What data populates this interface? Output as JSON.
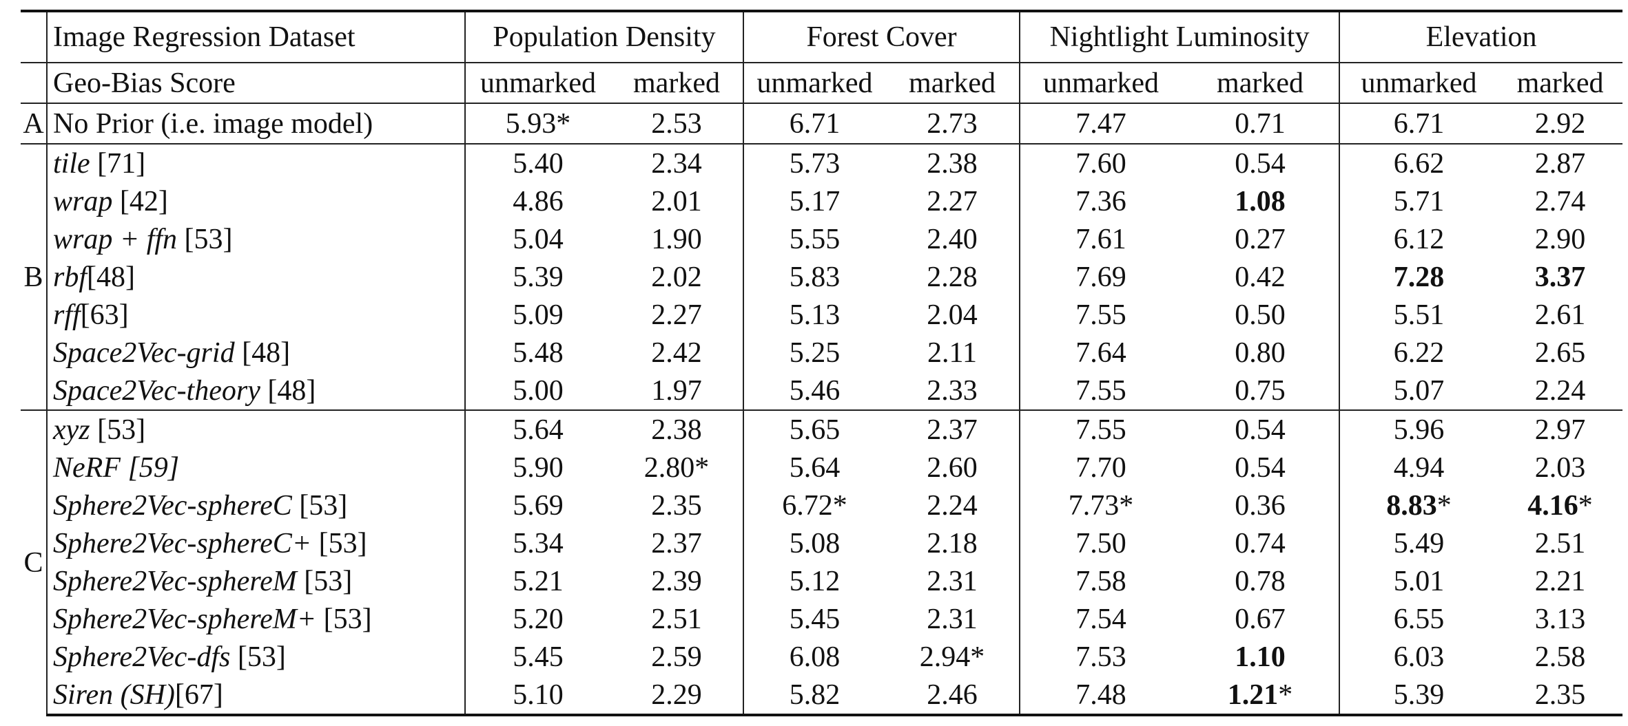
{
  "table": {
    "dataset_label": "Image Regression Dataset",
    "score_label": "Geo-Bias Score",
    "datasets": [
      "Population Density",
      "Forest Cover",
      "Nightlight Luminosity",
      "Elevation"
    ],
    "sub_labels": [
      "unmarked",
      "marked",
      "unmarked",
      "marked",
      "unmarked",
      "marked",
      "unmarked",
      "marked"
    ],
    "group_a": {
      "label": "A",
      "rows": [
        {
          "name_parts": [
            {
              "t": "No Prior (i.e. image model)",
              "s": ""
            }
          ],
          "v": [
            {
              "t": "5.93*",
              "b": false
            },
            {
              "t": "2.53",
              "b": false
            },
            {
              "t": "6.71",
              "b": false
            },
            {
              "t": "2.73",
              "b": false
            },
            {
              "t": "7.47",
              "b": false
            },
            {
              "t": "0.71",
              "b": false
            },
            {
              "t": "6.71",
              "b": false
            },
            {
              "t": "2.92",
              "b": false
            }
          ]
        }
      ]
    },
    "group_b": {
      "label": "B",
      "rows": [
        {
          "name_parts": [
            {
              "t": "tile",
              "s": "it"
            },
            {
              "t": " [71]",
              "s": ""
            }
          ],
          "v": [
            {
              "t": "5.40",
              "b": false
            },
            {
              "t": "2.34",
              "b": false
            },
            {
              "t": "5.73",
              "b": false
            },
            {
              "t": "2.38",
              "b": false
            },
            {
              "t": "7.60",
              "b": false
            },
            {
              "t": "0.54",
              "b": false
            },
            {
              "t": "6.62",
              "b": false
            },
            {
              "t": "2.87",
              "b": false
            }
          ]
        },
        {
          "name_parts": [
            {
              "t": "wrap",
              "s": "it"
            },
            {
              "t": " [42]",
              "s": ""
            }
          ],
          "v": [
            {
              "t": "4.86",
              "b": false
            },
            {
              "t": "2.01",
              "b": false
            },
            {
              "t": "5.17",
              "b": false
            },
            {
              "t": "2.27",
              "b": false
            },
            {
              "t": "7.36",
              "b": false
            },
            {
              "t": "1.08",
              "b": true
            },
            {
              "t": "5.71",
              "b": false
            },
            {
              "t": "2.74",
              "b": false
            }
          ]
        },
        {
          "name_parts": [
            {
              "t": "wrap + ffn",
              "s": "it"
            },
            {
              "t": " [53]",
              "s": ""
            }
          ],
          "v": [
            {
              "t": "5.04",
              "b": false
            },
            {
              "t": "1.90",
              "b": false
            },
            {
              "t": "5.55",
              "b": false
            },
            {
              "t": "2.40",
              "b": false
            },
            {
              "t": "7.61",
              "b": false
            },
            {
              "t": "0.27",
              "b": false
            },
            {
              "t": "6.12",
              "b": false
            },
            {
              "t": "2.90",
              "b": false
            }
          ]
        },
        {
          "name_parts": [
            {
              "t": "rbf",
              "s": "it"
            },
            {
              "t": "[48]",
              "s": ""
            }
          ],
          "v": [
            {
              "t": "5.39",
              "b": false
            },
            {
              "t": "2.02",
              "b": false
            },
            {
              "t": "5.83",
              "b": false
            },
            {
              "t": "2.28",
              "b": false
            },
            {
              "t": "7.69",
              "b": false
            },
            {
              "t": "0.42",
              "b": false
            },
            {
              "t": "7.28",
              "b": true
            },
            {
              "t": "3.37",
              "b": true
            }
          ]
        },
        {
          "name_parts": [
            {
              "t": "rff",
              "s": "it"
            },
            {
              "t": "[63]",
              "s": ""
            }
          ],
          "v": [
            {
              "t": "5.09",
              "b": false
            },
            {
              "t": "2.27",
              "b": false
            },
            {
              "t": "5.13",
              "b": false
            },
            {
              "t": "2.04",
              "b": false
            },
            {
              "t": "7.55",
              "b": false
            },
            {
              "t": "0.50",
              "b": false
            },
            {
              "t": "5.51",
              "b": false
            },
            {
              "t": "2.61",
              "b": false
            }
          ]
        },
        {
          "name_parts": [
            {
              "t": "Space2Vec-grid",
              "s": "it"
            },
            {
              "t": " [48]",
              "s": ""
            }
          ],
          "v": [
            {
              "t": "5.48",
              "b": false
            },
            {
              "t": "2.42",
              "b": false
            },
            {
              "t": "5.25",
              "b": false
            },
            {
              "t": "2.11",
              "b": false
            },
            {
              "t": "7.64",
              "b": false
            },
            {
              "t": "0.80",
              "b": false
            },
            {
              "t": "6.22",
              "b": false
            },
            {
              "t": "2.65",
              "b": false
            }
          ]
        },
        {
          "name_parts": [
            {
              "t": "Space2Vec-theory",
              "s": "it"
            },
            {
              "t": " [48]",
              "s": ""
            }
          ],
          "v": [
            {
              "t": "5.00",
              "b": false
            },
            {
              "t": "1.97",
              "b": false
            },
            {
              "t": "5.46",
              "b": false
            },
            {
              "t": "2.33",
              "b": false
            },
            {
              "t": "7.55",
              "b": false
            },
            {
              "t": "0.75",
              "b": false
            },
            {
              "t": "5.07",
              "b": false
            },
            {
              "t": "2.24",
              "b": false
            }
          ]
        }
      ]
    },
    "group_c": {
      "label": "C",
      "rows": [
        {
          "name_parts": [
            {
              "t": "xyz",
              "s": "it"
            },
            {
              "t": " [53]",
              "s": ""
            }
          ],
          "v": [
            {
              "t": "5.64",
              "b": false
            },
            {
              "t": "2.38",
              "b": false
            },
            {
              "t": "5.65",
              "b": false
            },
            {
              "t": "2.37",
              "b": false
            },
            {
              "t": "7.55",
              "b": false
            },
            {
              "t": "0.54",
              "b": false
            },
            {
              "t": "5.96",
              "b": false
            },
            {
              "t": "2.97",
              "b": false
            }
          ]
        },
        {
          "name_parts": [
            {
              "t": "NeRF [59]",
              "s": "it"
            }
          ],
          "v": [
            {
              "t": "5.90",
              "b": false
            },
            {
              "t": "2.80*",
              "b": false
            },
            {
              "t": "5.64",
              "b": false
            },
            {
              "t": "2.60",
              "b": false
            },
            {
              "t": "7.70",
              "b": false
            },
            {
              "t": "0.54",
              "b": false
            },
            {
              "t": "4.94",
              "b": false
            },
            {
              "t": "2.03",
              "b": false
            }
          ]
        },
        {
          "name_parts": [
            {
              "t": "Sphere2Vec-sphereC",
              "s": "it"
            },
            {
              "t": " [53]",
              "s": ""
            }
          ],
          "v": [
            {
              "t": "5.69",
              "b": false
            },
            {
              "t": "2.35",
              "b": false
            },
            {
              "t": "6.72*",
              "b": false
            },
            {
              "t": "2.24",
              "b": false
            },
            {
              "t": "7.73*",
              "b": false
            },
            {
              "t": "0.36",
              "b": false
            },
            {
              "t": "8.83",
              "b": true,
              "suffix": "*"
            },
            {
              "t": "4.16",
              "b": true,
              "suffix": "*"
            }
          ]
        },
        {
          "name_parts": [
            {
              "t": "Sphere2Vec-sphereC+",
              "s": "it"
            },
            {
              "t": " [53]",
              "s": ""
            }
          ],
          "v": [
            {
              "t": "5.34",
              "b": false
            },
            {
              "t": "2.37",
              "b": false
            },
            {
              "t": "5.08",
              "b": false
            },
            {
              "t": "2.18",
              "b": false
            },
            {
              "t": "7.50",
              "b": false
            },
            {
              "t": "0.74",
              "b": false
            },
            {
              "t": "5.49",
              "b": false
            },
            {
              "t": "2.51",
              "b": false
            }
          ]
        },
        {
          "name_parts": [
            {
              "t": "Sphere2Vec-sphereM",
              "s": "it"
            },
            {
              "t": " [53]",
              "s": ""
            }
          ],
          "v": [
            {
              "t": "5.21",
              "b": false
            },
            {
              "t": "2.39",
              "b": false
            },
            {
              "t": "5.12",
              "b": false
            },
            {
              "t": "2.31",
              "b": false
            },
            {
              "t": "7.58",
              "b": false
            },
            {
              "t": "0.78",
              "b": false
            },
            {
              "t": "5.01",
              "b": false
            },
            {
              "t": "2.21",
              "b": false
            }
          ]
        },
        {
          "name_parts": [
            {
              "t": "Sphere2Vec-sphereM+",
              "s": "it"
            },
            {
              "t": " [53]",
              "s": ""
            }
          ],
          "v": [
            {
              "t": "5.20",
              "b": false
            },
            {
              "t": "2.51",
              "b": false
            },
            {
              "t": "5.45",
              "b": false
            },
            {
              "t": "2.31",
              "b": false
            },
            {
              "t": "7.54",
              "b": false
            },
            {
              "t": "0.67",
              "b": false
            },
            {
              "t": "6.55",
              "b": false
            },
            {
              "t": "3.13",
              "b": false
            }
          ]
        },
        {
          "name_parts": [
            {
              "t": "Sphere2Vec-dfs",
              "s": "it"
            },
            {
              "t": " [53]",
              "s": ""
            }
          ],
          "v": [
            {
              "t": "5.45",
              "b": false
            },
            {
              "t": "2.59",
              "b": false
            },
            {
              "t": "6.08",
              "b": false
            },
            {
              "t": "2.94*",
              "b": false
            },
            {
              "t": "7.53",
              "b": false
            },
            {
              "t": "1.10",
              "b": true
            },
            {
              "t": "6.03",
              "b": false
            },
            {
              "t": "2.58",
              "b": false
            }
          ]
        },
        {
          "name_parts": [
            {
              "t": "Siren (SH)",
              "s": "it"
            },
            {
              "t": "[67]",
              "s": ""
            }
          ],
          "v": [
            {
              "t": "5.10",
              "b": false
            },
            {
              "t": "2.29",
              "b": false
            },
            {
              "t": "5.82",
              "b": false
            },
            {
              "t": "2.46",
              "b": false
            },
            {
              "t": "7.48",
              "b": false
            },
            {
              "t": "1.21",
              "b": true,
              "suffix": "*"
            },
            {
              "t": "5.39",
              "b": false
            },
            {
              "t": "2.35",
              "b": false
            }
          ]
        }
      ]
    }
  }
}
